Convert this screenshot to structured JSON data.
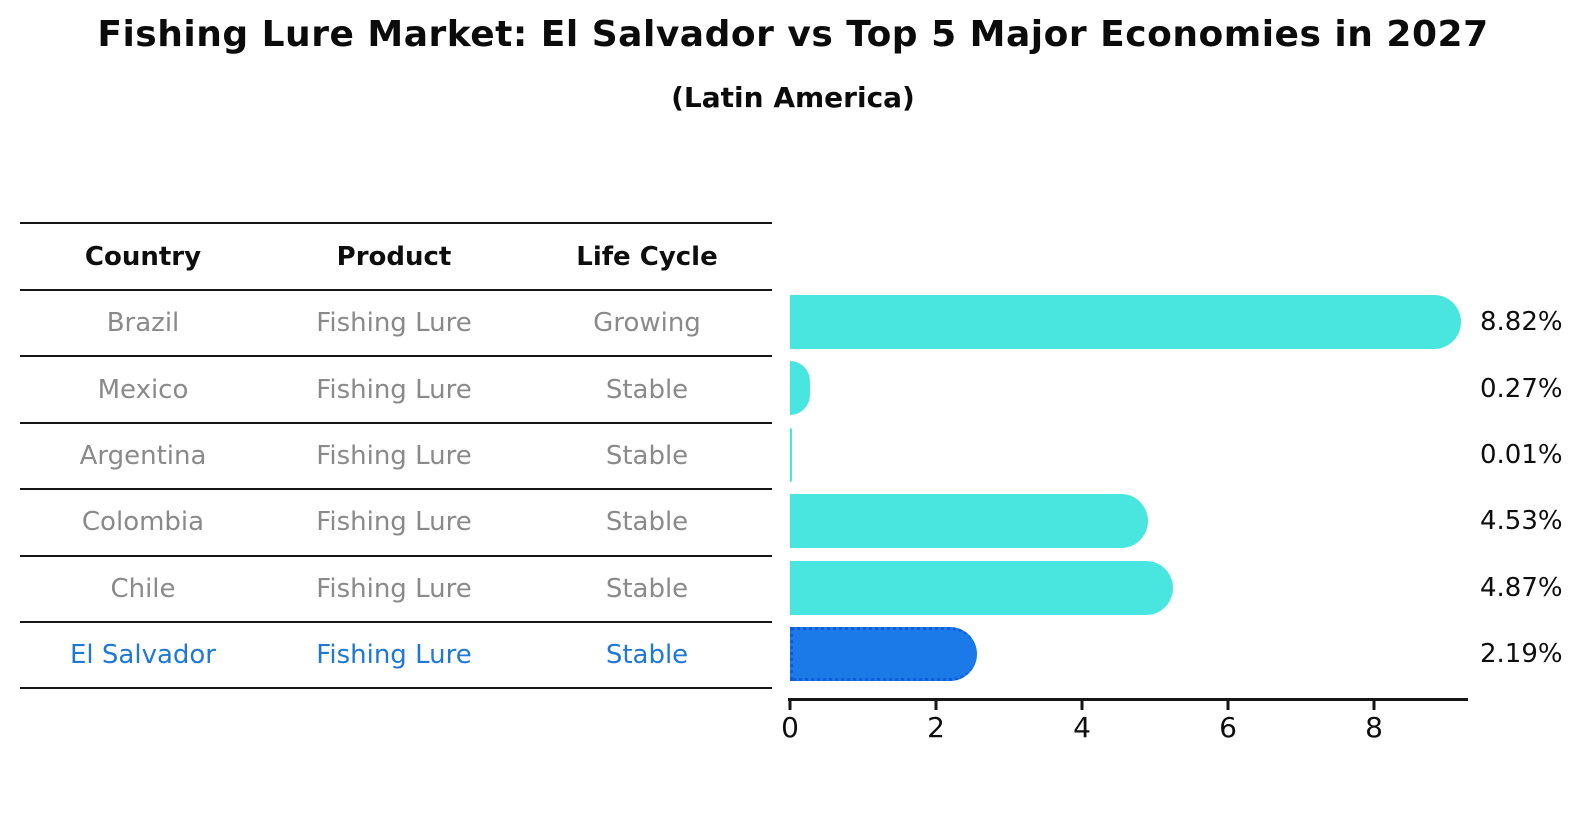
{
  "title": "Fishing Lure Market: El Salvador vs Top 5 Major Economies in 2027",
  "subtitle": "(Latin America)",
  "table": {
    "headers": [
      "Country",
      "Product",
      "Life Cycle"
    ],
    "rows": [
      {
        "country": "Brazil",
        "product": "Fishing Lure",
        "life_cycle": "Growing",
        "highlight": false
      },
      {
        "country": "Mexico",
        "product": "Fishing Lure",
        "life_cycle": "Stable",
        "highlight": false
      },
      {
        "country": "Argentina",
        "product": "Fishing Lure",
        "life_cycle": "Stable",
        "highlight": false
      },
      {
        "country": "Colombia",
        "product": "Fishing Lure",
        "life_cycle": "Stable",
        "highlight": false
      },
      {
        "country": "Chile",
        "product": "Fishing Lure",
        "life_cycle": "Stable",
        "highlight": false
      },
      {
        "country": "El Salvador",
        "product": "Fishing Lure",
        "life_cycle": "Stable",
        "highlight": true
      }
    ]
  },
  "chart_data": {
    "type": "bar",
    "orientation": "horizontal",
    "title": "Fishing Lure Market: El Salvador vs Top 5 Major Economies in 2027",
    "subtitle": "(Latin America)",
    "categories": [
      "Brazil",
      "Mexico",
      "Argentina",
      "Colombia",
      "Chile",
      "El Salvador"
    ],
    "values": [
      8.82,
      0.27,
      0.01,
      4.53,
      4.87,
      2.19
    ],
    "value_labels": [
      "8.82%",
      "0.27%",
      "0.01%",
      "4.53%",
      "4.87%",
      "2.19%"
    ],
    "xlabel": "",
    "ylabel": "",
    "xticks": [
      0,
      2,
      4,
      6,
      8
    ],
    "xlim": [
      0,
      9.3
    ],
    "grid": false,
    "legend": "none",
    "highlight_category": "El Salvador",
    "colors": {
      "bar_default": "#48e6df",
      "bar_highlight": "#1b7ae8",
      "bar_highlight_border": "#0d5ed8",
      "highlight_text": "#1f78d4",
      "row_text": "#8a8a8a",
      "header_text": "#0e0e0e",
      "axis": "#161616",
      "label_text": "#0e0e0e"
    }
  }
}
